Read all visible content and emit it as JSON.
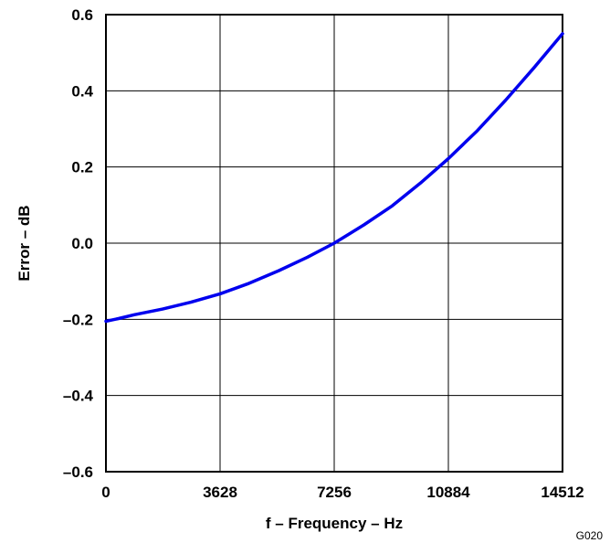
{
  "figure_id": "G020",
  "colors": {
    "series": "#0000ee",
    "grid": "#000000"
  },
  "chart_data": {
    "type": "line",
    "title": "",
    "xlabel": "f – Frequency – Hz",
    "ylabel": "Error – dB",
    "xlim": [
      0,
      14512
    ],
    "ylim": [
      -0.6,
      0.6
    ],
    "xticks": [
      0,
      3628,
      7256,
      10884,
      14512
    ],
    "xtick_labels": [
      "0",
      "3628",
      "7256",
      "10884",
      "14512"
    ],
    "yticks": [
      0.6,
      0.4,
      0.2,
      0.0,
      -0.2,
      -0.4,
      -0.6
    ],
    "ytick_labels": [
      "0.6",
      "0.4",
      "0.2",
      "0.0",
      "–0.2",
      "–0.4",
      "–0.6"
    ],
    "grid": true,
    "series": [
      {
        "x": [
          0,
          400,
          900,
          1800,
          2700,
          3628,
          4500,
          5500,
          6400,
          7256,
          8200,
          9100,
          10000,
          10884,
          11800,
          12700,
          13600,
          14512
        ],
        "y": [
          -0.205,
          -0.198,
          -0.188,
          -0.173,
          -0.155,
          -0.133,
          -0.107,
          -0.072,
          -0.037,
          0.0,
          0.048,
          0.098,
          0.158,
          0.222,
          0.295,
          0.375,
          0.46,
          0.55
        ]
      }
    ]
  }
}
